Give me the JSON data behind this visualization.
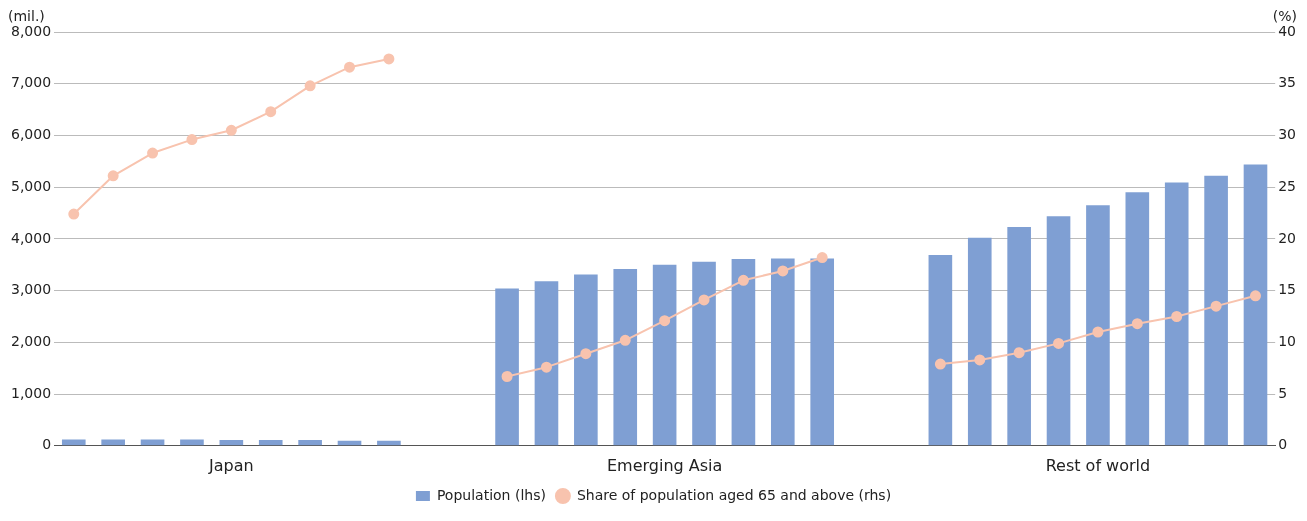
{
  "chart_data": {
    "type": "bar",
    "ylabel": "(mil.)",
    "y2label": "(%)",
    "categories": [
      null,
      null,
      null,
      null,
      "Japan",
      null,
      null,
      null,
      null,
      null,
      null,
      null,
      null,
      null,
      null,
      "Emerging Asia",
      null,
      null,
      null,
      null,
      null,
      null,
      null,
      null,
      null,
      null,
      "Rest of world",
      null,
      null,
      null,
      null
    ],
    "series": [
      {
        "name": "Population (lhs)",
        "color": "#7f9fd3",
        "values": [
          120,
          120,
          120,
          120,
          110,
          110,
          110,
          100,
          100,
          null,
          null,
          3040,
          3180,
          3310,
          3420,
          3500,
          3560,
          3610,
          3620,
          3620,
          null,
          null,
          3690,
          4020,
          4230,
          4440,
          4650,
          4900,
          5090,
          5220,
          5440
        ]
      },
      {
        "name": "Share of population aged 65 and above (rhs)",
        "type": "line",
        "axis": "y2",
        "color": "#f8c3ae",
        "values": [
          22.4,
          26.1,
          28.3,
          29.6,
          30.5,
          32.3,
          34.8,
          36.6,
          37.4,
          null,
          null,
          6.7,
          7.6,
          8.9,
          10.2,
          12.1,
          14.1,
          16.0,
          16.9,
          18.2,
          null,
          null,
          7.9,
          8.3,
          9.0,
          9.9,
          11.0,
          11.8,
          12.5,
          13.5,
          14.5
        ]
      }
    ],
    "ylim": [
      0,
      8000
    ],
    "yticks": [
      0,
      {
        "value": 1000,
        "label": "1,000"
      },
      {
        "value": 2000,
        "label": "2,000"
      },
      {
        "value": 3000,
        "label": "3,000"
      },
      {
        "value": 4000,
        "label": "4,000"
      },
      {
        "value": 5000,
        "label": "5,000"
      },
      {
        "value": 6000,
        "label": "6,000"
      },
      {
        "value": 7000,
        "label": "7,000"
      },
      {
        "value": 8000,
        "label": "8,000"
      }
    ],
    "y2lim": [
      0,
      40
    ],
    "y2ticks": [
      0,
      5,
      10,
      15,
      20,
      25,
      30,
      35,
      40
    ],
    "grid": "y",
    "legend": "bottom",
    "marker": "circle",
    "line_style": "solid"
  }
}
